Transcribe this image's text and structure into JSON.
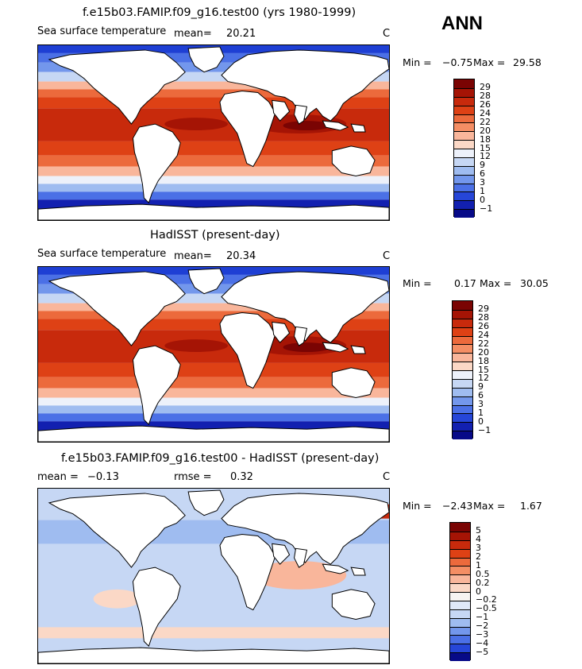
{
  "season": "ANN",
  "panels": [
    {
      "title": "f.e15b03.FAMIP.f09_g16.test00 (yrs 1980-1999)",
      "variable": "Sea surface temperature",
      "stat1_label": "mean=",
      "stat1_value": "20.21",
      "stat2_label": "",
      "stat2_value": "",
      "units": "C",
      "min_label": "Min =",
      "min_value": "−0.75",
      "max_label": "Max =",
      "max_value": "29.58",
      "palette": "sst",
      "colorbar_labels": [
        "29",
        "28",
        "26",
        "24",
        "22",
        "20",
        "18",
        "15",
        "12",
        "9",
        "6",
        "3",
        "1",
        "0",
        "−1"
      ]
    },
    {
      "title": "HadISST (present-day)",
      "variable": "Sea surface temperature",
      "stat1_label": "mean=",
      "stat1_value": "20.34",
      "stat2_label": "",
      "stat2_value": "",
      "units": "C",
      "min_label": "Min =",
      "min_value": "0.17",
      "max_label": "Max =",
      "max_value": "30.05",
      "palette": "sst",
      "colorbar_labels": [
        "29",
        "28",
        "26",
        "24",
        "22",
        "20",
        "18",
        "15",
        "12",
        "9",
        "6",
        "3",
        "1",
        "0",
        "−1"
      ]
    },
    {
      "title": "f.e15b03.FAMIP.f09_g16.test00 - HadISST (present-day)",
      "variable": "",
      "stat1_label": "mean =",
      "stat1_value": "−0.13",
      "stat2_label": "rmse =",
      "stat2_value": "0.32",
      "units": "C",
      "min_label": "Min =",
      "min_value": "−2.43",
      "max_label": "Max =",
      "max_value": "1.67",
      "palette": "diff",
      "colorbar_labels": [
        "5",
        "4",
        "3",
        "2",
        "1",
        "0.5",
        "0.2",
        "0",
        "−0.2",
        "−0.5",
        "−1",
        "−2",
        "−3",
        "−4",
        "−5"
      ]
    }
  ],
  "palettes": {
    "sst": [
      "#7a0403",
      "#a51405",
      "#c82a0c",
      "#de4115",
      "#ec6a3c",
      "#f48e64",
      "#f9b69b",
      "#fbd8c6",
      "#edf1fa",
      "#c6d7f4",
      "#9fbcf0",
      "#7397ec",
      "#4b70e6",
      "#2646d8",
      "#1220b0",
      "#070a88"
    ],
    "diff": [
      "#7a0403",
      "#a51405",
      "#c82a0c",
      "#de4115",
      "#ec6a3c",
      "#f48e64",
      "#f9b69b",
      "#fbd8c6",
      "#f6f4f2",
      "#dfe8f8",
      "#c6d7f4",
      "#9fbcf0",
      "#7397ec",
      "#4b70e6",
      "#2646d8",
      "#070a88"
    ]
  }
}
